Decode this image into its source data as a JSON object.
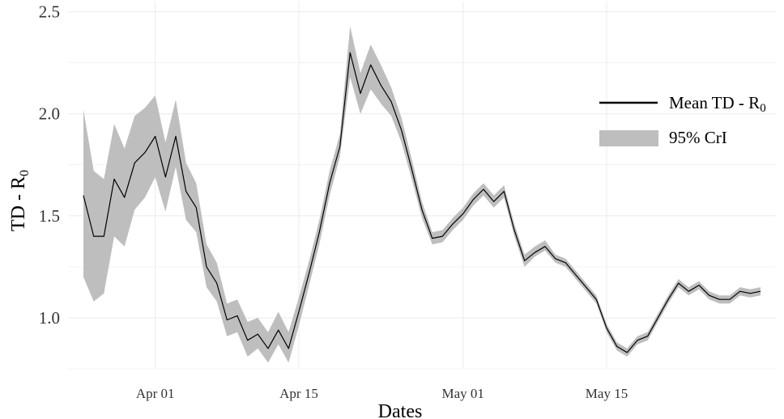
{
  "chart_data": {
    "type": "line",
    "title": "",
    "xlabel": "Dates",
    "ylabel": "TD - R",
    "ylabel_subscript": "0",
    "x_tick_labels": [
      {
        "day": 7,
        "label": "Apr 01"
      },
      {
        "day": 21,
        "label": "Apr 15"
      },
      {
        "day": 37,
        "label": "May 01"
      },
      {
        "day": 51,
        "label": "May 15"
      }
    ],
    "xlim_days": [
      -1.5,
      67.5
    ],
    "ylim": [
      0.75,
      2.55
    ],
    "y_ticks": [
      1.0,
      1.5,
      2.0,
      2.5
    ],
    "y_tick_labels": [
      "1.0",
      "1.5",
      "2.0",
      "2.5"
    ],
    "grid": true,
    "legend": {
      "position": "right",
      "entries": [
        {
          "label": "Mean TD - R",
          "subscript": "0",
          "kind": "line"
        },
        {
          "label": "95% CrI",
          "subscript": "",
          "kind": "band"
        }
      ]
    },
    "colors": {
      "line": "#000000",
      "band": "#bebebe",
      "grid": "#ebebeb"
    },
    "series": [
      {
        "name": "Mean TD - R0",
        "x_days": [
          0,
          1,
          2,
          3,
          4,
          5,
          6,
          7,
          8,
          9,
          10,
          11,
          12,
          13,
          14,
          15,
          16,
          17,
          18,
          19,
          20,
          21,
          22,
          23,
          24,
          25,
          26,
          27,
          28,
          29,
          30,
          31,
          32,
          33,
          34,
          35,
          36,
          37,
          38,
          39,
          40,
          41,
          42,
          43,
          44,
          45,
          46,
          47,
          48,
          49,
          50,
          51,
          52,
          53,
          54,
          55,
          56,
          57,
          58,
          59,
          60,
          61,
          62,
          63,
          64,
          65,
          66
        ],
        "values": [
          1.6,
          1.4,
          1.4,
          1.68,
          1.59,
          1.76,
          1.81,
          1.89,
          1.69,
          1.89,
          1.62,
          1.54,
          1.25,
          1.17,
          0.99,
          1.01,
          0.89,
          0.92,
          0.85,
          0.94,
          0.85,
          1.03,
          1.22,
          1.42,
          1.66,
          1.84,
          2.3,
          2.1,
          2.24,
          2.14,
          2.06,
          1.92,
          1.73,
          1.53,
          1.39,
          1.4,
          1.46,
          1.51,
          1.58,
          1.63,
          1.57,
          1.62,
          1.43,
          1.28,
          1.32,
          1.35,
          1.29,
          1.27,
          1.21,
          1.15,
          1.09,
          0.95,
          0.86,
          0.83,
          0.89,
          0.91,
          1.0,
          1.09,
          1.17,
          1.13,
          1.16,
          1.11,
          1.09,
          1.09,
          1.13,
          1.12,
          1.13
        ],
        "lower": [
          1.2,
          1.08,
          1.12,
          1.4,
          1.35,
          1.53,
          1.59,
          1.69,
          1.52,
          1.74,
          1.48,
          1.42,
          1.15,
          1.08,
          0.91,
          0.93,
          0.81,
          0.85,
          0.78,
          0.87,
          0.78,
          0.96,
          1.16,
          1.36,
          1.6,
          1.79,
          2.18,
          2.0,
          2.12,
          2.05,
          1.99,
          1.86,
          1.68,
          1.49,
          1.36,
          1.37,
          1.43,
          1.48,
          1.55,
          1.6,
          1.54,
          1.59,
          1.4,
          1.25,
          1.3,
          1.33,
          1.27,
          1.25,
          1.19,
          1.13,
          1.07,
          0.93,
          0.84,
          0.81,
          0.87,
          0.89,
          0.98,
          1.07,
          1.15,
          1.11,
          1.14,
          1.09,
          1.07,
          1.07,
          1.11,
          1.1,
          1.11
        ],
        "upper": [
          2.02,
          1.72,
          1.68,
          1.95,
          1.83,
          1.99,
          2.03,
          2.09,
          1.86,
          2.07,
          1.76,
          1.66,
          1.36,
          1.27,
          1.07,
          1.09,
          0.98,
          1.0,
          0.93,
          1.03,
          0.93,
          1.1,
          1.28,
          1.48,
          1.72,
          1.9,
          2.43,
          2.2,
          2.34,
          2.24,
          2.13,
          1.98,
          1.78,
          1.57,
          1.42,
          1.43,
          1.49,
          1.54,
          1.61,
          1.66,
          1.6,
          1.65,
          1.46,
          1.31,
          1.35,
          1.38,
          1.31,
          1.29,
          1.23,
          1.17,
          1.11,
          0.97,
          0.88,
          0.85,
          0.91,
          0.93,
          1.02,
          1.11,
          1.19,
          1.15,
          1.18,
          1.13,
          1.11,
          1.11,
          1.15,
          1.14,
          1.15
        ]
      }
    ]
  }
}
